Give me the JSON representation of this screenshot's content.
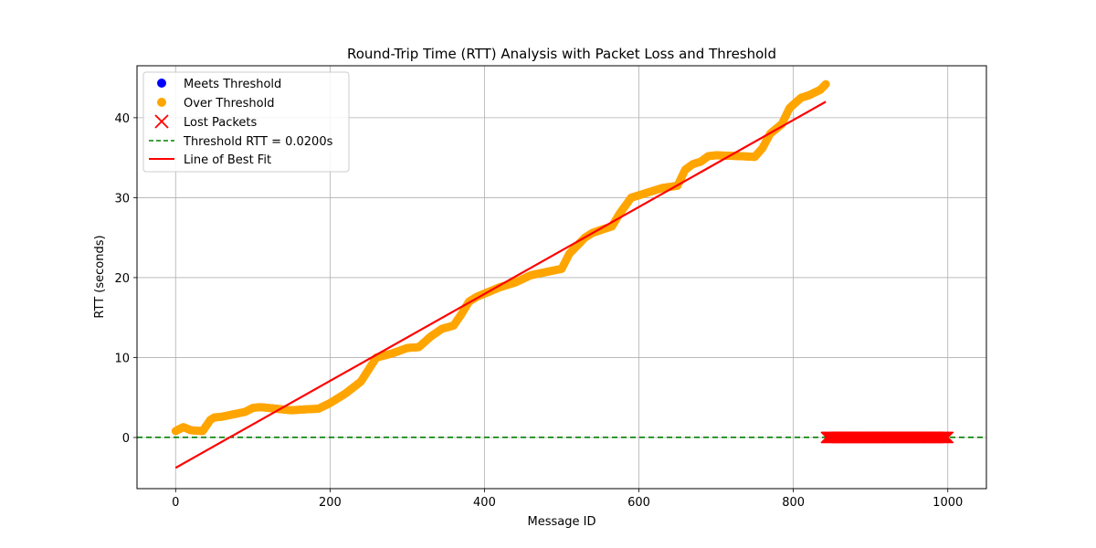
{
  "chart_data": {
    "type": "scatter",
    "title": "Round-Trip Time (RTT) Analysis with Packet Loss and Threshold",
    "xlabel": "Message ID",
    "ylabel": "RTT (seconds)",
    "xlim": [
      -50,
      1050
    ],
    "ylim": [
      -6.4,
      46.5
    ],
    "xticks": [
      0,
      200,
      400,
      600,
      800,
      1000
    ],
    "yticks": [
      0,
      10,
      20,
      30,
      40
    ],
    "grid": true,
    "legend_position": "upper-left",
    "legend": [
      {
        "label": "Meets Threshold",
        "marker": "dot",
        "color": "#0000ff"
      },
      {
        "label": "Over Threshold",
        "marker": "dot",
        "color": "#ffa500"
      },
      {
        "label": "Lost Packets",
        "marker": "x",
        "color": "#ff0000"
      },
      {
        "label": "Threshold RTT = 0.0200s",
        "marker": "dashed-line",
        "color": "#008000"
      },
      {
        "label": "Line of Best Fit",
        "marker": "line",
        "color": "#ff0000"
      }
    ],
    "series": [
      {
        "name": "Meets Threshold",
        "color": "#0000ff",
        "x": [],
        "y": []
      },
      {
        "name": "Over Threshold",
        "color": "#ffa500",
        "x": [
          0,
          10,
          20,
          35,
          45,
          50,
          60,
          75,
          90,
          100,
          110,
          130,
          150,
          165,
          185,
          200,
          220,
          240,
          250,
          260,
          280,
          300,
          315,
          330,
          345,
          360,
          370,
          380,
          390,
          400,
          420,
          440,
          460,
          480,
          500,
          510,
          520,
          530,
          540,
          555,
          565,
          575,
          590,
          610,
          630,
          650,
          660,
          670,
          680,
          690,
          700,
          730,
          750,
          760,
          770,
          785,
          795,
          810,
          820,
          835,
          842
        ],
        "y": [
          0.8,
          1.3,
          0.9,
          0.8,
          2.2,
          2.5,
          2.6,
          2.9,
          3.2,
          3.7,
          3.8,
          3.6,
          3.4,
          3.5,
          3.6,
          4.3,
          5.5,
          7.0,
          8.5,
          10.0,
          10.5,
          11.2,
          11.3,
          12.6,
          13.6,
          14.0,
          15.4,
          17.0,
          17.6,
          18.0,
          18.8,
          19.4,
          20.3,
          20.7,
          21.1,
          23.0,
          24.0,
          25.0,
          25.6,
          26.1,
          26.4,
          28.0,
          30.0,
          30.6,
          31.2,
          31.5,
          33.5,
          34.2,
          34.5,
          35.2,
          35.3,
          35.2,
          35.1,
          36.2,
          38.0,
          39.2,
          41.2,
          42.5,
          42.8,
          43.5,
          44.2
        ]
      },
      {
        "name": "Lost Packets",
        "color": "#ff0000",
        "x_range": [
          843,
          1000
        ],
        "y": 0
      }
    ],
    "threshold": {
      "label": "Threshold RTT = 0.0200s",
      "y": 0.02,
      "color": "#008000"
    },
    "best_fit": {
      "label": "Line of Best Fit",
      "x": [
        0,
        842
      ],
      "y": [
        -3.8,
        42.0
      ],
      "color": "#ff0000"
    }
  }
}
